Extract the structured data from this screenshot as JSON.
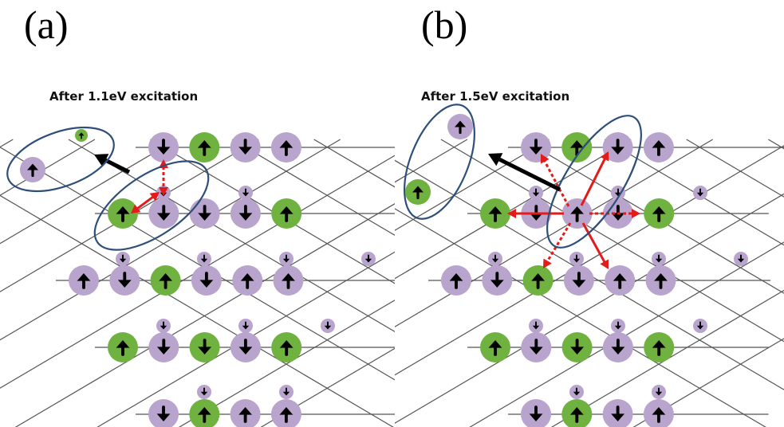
{
  "panels": [
    {
      "label": "(a)",
      "caption": "After 1.1eV excitation"
    },
    {
      "label": "(b)",
      "caption": "After 1.5eV excitation"
    }
  ],
  "colors": {
    "green_site": "#6fb23f",
    "purple_site": "#b9a4cd",
    "spin_arrow": "#000000",
    "lattice_line": "#555555",
    "ellipse": "#2e4f7a",
    "red_arrow": "#e21b1b"
  },
  "icons": {
    "spin_up": "arrow-up-icon",
    "spin_down": "arrow-down-icon",
    "exchange": "red-arrow-icon"
  }
}
